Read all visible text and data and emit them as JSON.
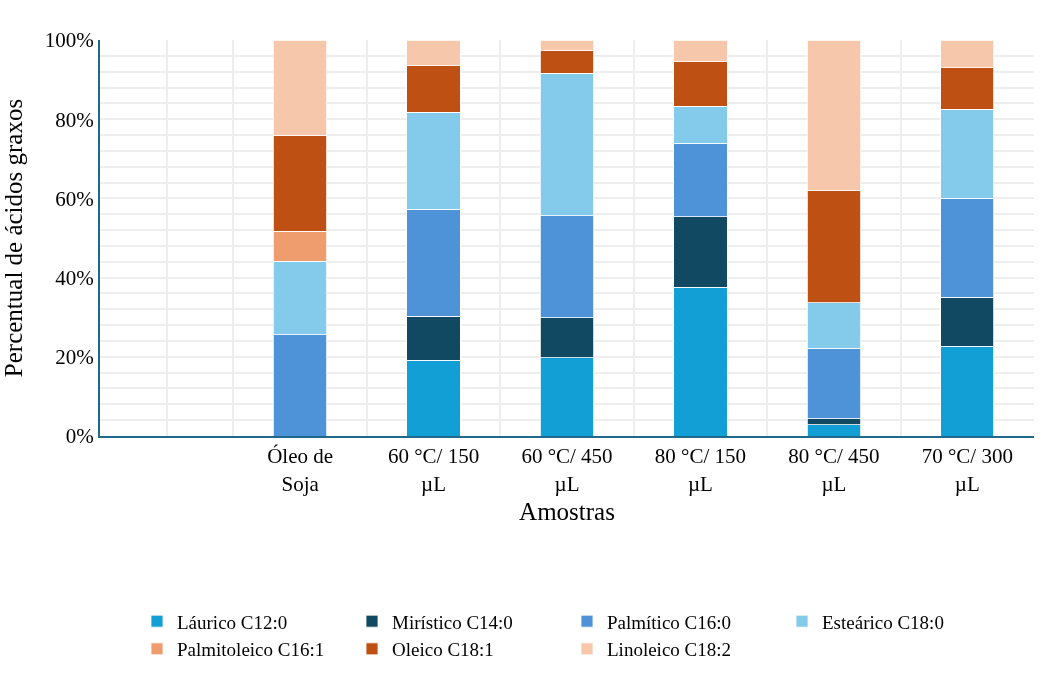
{
  "chart_data": {
    "type": "bar",
    "stacked": true,
    "xlabel": "Amostras",
    "ylabel": "Percentual de ácidos graxos",
    "categories": [
      null,
      "Óleo de Soja",
      "60 °C/ 150 µL",
      "60 °C/ 450 µL",
      "80 °C/ 150 µL",
      "80 °C/ 450 µL",
      "70 °C/ 300 µL"
    ],
    "series": [
      {
        "name": "Láurico C12:0",
        "color": "#129fd6",
        "values": [
          null,
          0,
          19.1,
          19.8,
          37.6,
          2.9,
          22.7
        ]
      },
      {
        "name": "Mirístico C14:0",
        "color": "#114862",
        "values": [
          null,
          0,
          11.2,
          10.0,
          17.8,
          1.5,
          12.3
        ]
      },
      {
        "name": "Palmítico C16:0",
        "color": "#4e92d8",
        "values": [
          null,
          25.6,
          26.9,
          25.8,
          18.5,
          17.8,
          25.1
        ]
      },
      {
        "name": "Esteárico C18:0",
        "color": "#84cbeb",
        "values": [
          null,
          18.5,
          24.5,
          36.0,
          9.4,
          11.5,
          22.4
        ]
      },
      {
        "name": "Palmitoleico C16:1",
        "color": "#ef9c6f",
        "values": [
          null,
          7.6,
          0,
          0,
          0,
          0,
          0
        ]
      },
      {
        "name": "Oleico C18:1",
        "color": "#be5014",
        "values": [
          null,
          24.3,
          11.8,
          5.8,
          11.2,
          28.4,
          10.5
        ]
      },
      {
        "name": "Linoleico C18:2",
        "color": "#f6c7ab",
        "values": [
          null,
          24.0,
          6.5,
          2.6,
          5.5,
          37.9,
          7.0
        ]
      }
    ],
    "ylim": [
      0,
      100
    ],
    "yticks": [
      {
        "value": 0,
        "label": "0%"
      },
      {
        "value": 20,
        "label": "20%"
      },
      {
        "value": 40,
        "label": "40%"
      },
      {
        "value": 60,
        "label": "60%"
      },
      {
        "value": 80,
        "label": "80%"
      },
      {
        "value": 100,
        "label": "100%"
      }
    ],
    "grid": true,
    "legend": "bottom"
  }
}
